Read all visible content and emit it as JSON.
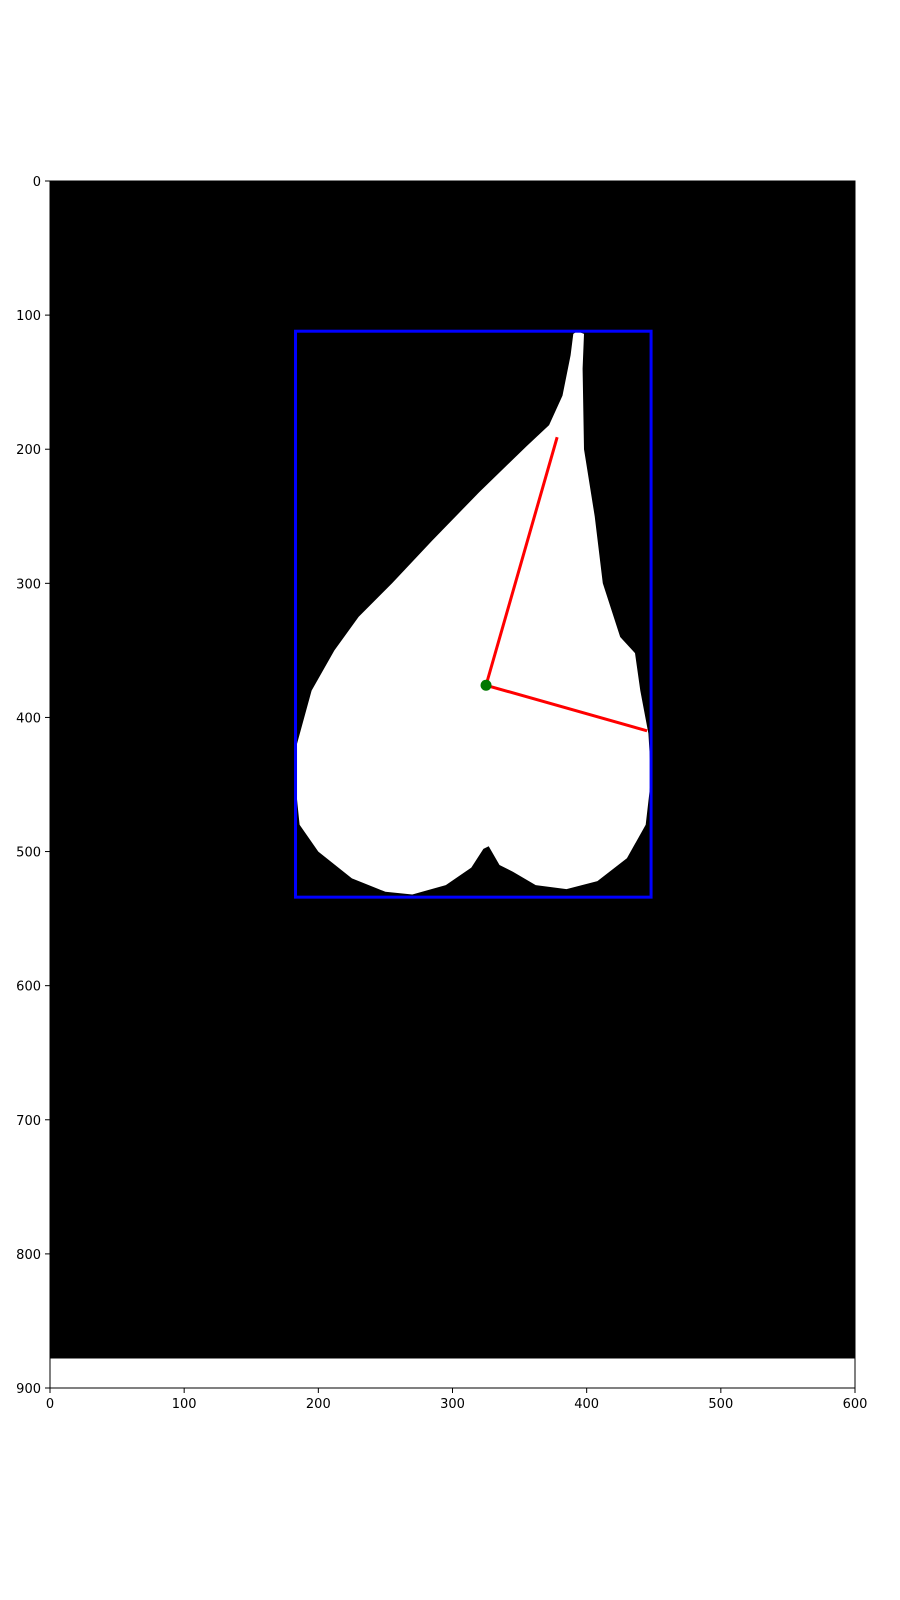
{
  "chart_data": {
    "type": "image",
    "xlim": [
      0,
      600
    ],
    "ylim": [
      900,
      0
    ],
    "x_ticks": [
      0,
      100,
      200,
      300,
      400,
      500,
      600
    ],
    "y_ticks": [
      0,
      100,
      200,
      300,
      400,
      500,
      600,
      700,
      800,
      900
    ],
    "x_tick_labels": [
      "0",
      "100",
      "200",
      "300",
      "400",
      "500",
      "600"
    ],
    "y_tick_labels": [
      "0",
      "100",
      "200",
      "300",
      "400",
      "500",
      "600",
      "700",
      "800",
      "900"
    ],
    "image_extent_y": [
      0,
      878
    ],
    "mask_outline": [
      [
        393,
        112
      ],
      [
        398,
        114
      ],
      [
        397,
        140
      ],
      [
        398,
        200
      ],
      [
        406,
        250
      ],
      [
        412,
        300
      ],
      [
        425,
        340
      ],
      [
        436,
        352
      ],
      [
        440,
        380
      ],
      [
        446,
        412
      ],
      [
        448,
        445
      ],
      [
        444,
        480
      ],
      [
        430,
        505
      ],
      [
        408,
        522
      ],
      [
        385,
        528
      ],
      [
        362,
        525
      ],
      [
        345,
        515
      ],
      [
        335,
        510
      ],
      [
        327,
        496
      ],
      [
        323,
        498
      ],
      [
        314,
        512
      ],
      [
        295,
        525
      ],
      [
        270,
        532
      ],
      [
        250,
        530
      ],
      [
        225,
        520
      ],
      [
        200,
        500
      ],
      [
        186,
        480
      ],
      [
        183,
        450
      ],
      [
        184,
        420
      ],
      [
        195,
        380
      ],
      [
        212,
        350
      ],
      [
        230,
        325
      ],
      [
        255,
        300
      ],
      [
        285,
        268
      ],
      [
        320,
        232
      ],
      [
        355,
        198
      ],
      [
        372,
        182
      ],
      [
        382,
        160
      ],
      [
        388,
        130
      ],
      [
        390,
        114
      ]
    ],
    "bounding_box": {
      "x_min": 183,
      "y_min": 112,
      "x_max": 448,
      "y_max": 534,
      "color": "#0000ff"
    },
    "centroid": {
      "x": 325,
      "y": 376,
      "color": "#007700"
    },
    "axis_lines": [
      {
        "from": [
          325,
          376
        ],
        "to": [
          378,
          191
        ],
        "color": "#ff0000"
      },
      {
        "from": [
          325,
          376
        ],
        "to": [
          445,
          410
        ],
        "color": "#ff0000"
      }
    ],
    "colors": {
      "background": "#000000",
      "mask": "#ffffff",
      "frame": "#000000"
    }
  }
}
